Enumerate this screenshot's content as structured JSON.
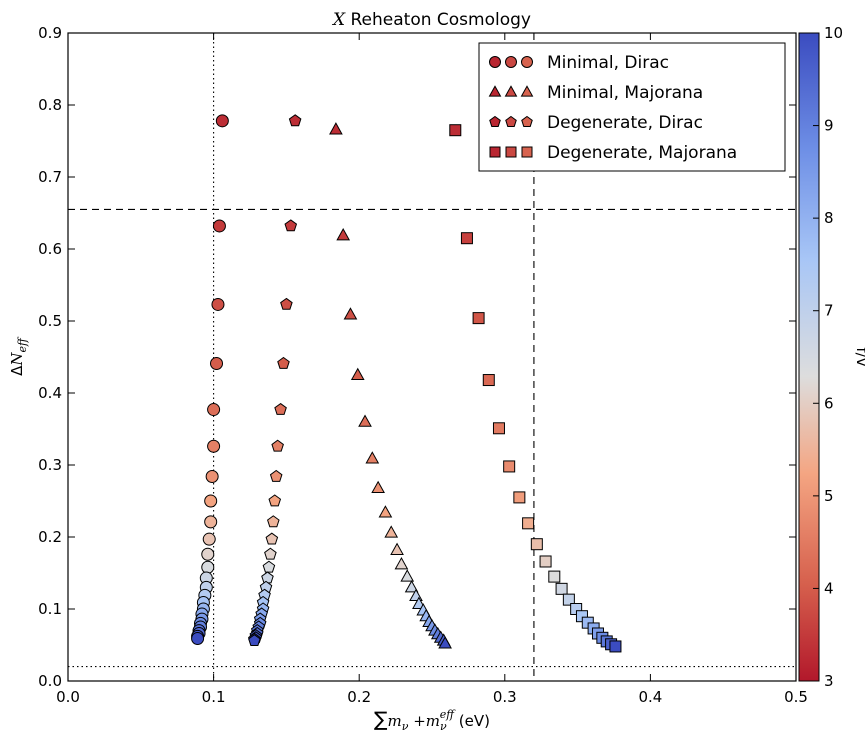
{
  "chart_data": {
    "type": "scatter",
    "title": {
      "prefix": "X",
      "rest": " Reheaton Cosmology"
    },
    "xlabel": {
      "sum": "∑",
      "m": "m",
      "nu": "ν",
      "plus": " +m",
      "nu2": "ν",
      "eff": "eff",
      "unit": " (eV)"
    },
    "ylabel": {
      "delta": "Δ",
      "n": "N",
      "eff": "eff"
    },
    "xlim": [
      0.0,
      0.5
    ],
    "ylim": [
      0.0,
      0.9
    ],
    "xticks": [
      "0.0",
      "0.1",
      "0.2",
      "0.3",
      "0.4",
      "0.5"
    ],
    "yticks": [
      "0.0",
      "0.1",
      "0.2",
      "0.3",
      "0.4",
      "0.5",
      "0.6",
      "0.7",
      "0.8",
      "0.9"
    ],
    "colorbar": {
      "label": "f/v",
      "min": 3,
      "max": 10,
      "ticks": [
        "3",
        "4",
        "5",
        "6",
        "7",
        "8",
        "9",
        "10"
      ]
    },
    "reference_lines": [
      {
        "orientation": "vertical",
        "value": 0.1,
        "style": "dotted"
      },
      {
        "orientation": "horizontal",
        "value": 0.02,
        "style": "dotted"
      },
      {
        "orientation": "vertical",
        "value": 0.32,
        "style": "dashed"
      },
      {
        "orientation": "horizontal",
        "value": 0.655,
        "style": "dashed"
      }
    ],
    "series": [
      {
        "name": "Minimal, Dirac",
        "marker": "circle",
        "x": [
          0.106,
          0.104,
          0.103,
          0.102,
          0.1,
          0.1,
          0.099,
          0.098,
          0.098,
          0.097,
          0.096,
          0.096,
          0.095,
          0.095,
          0.094,
          0.093,
          0.093,
          0.092,
          0.092,
          0.091,
          0.091,
          0.09,
          0.09,
          0.089,
          0.089
        ],
        "y": [
          0.778,
          0.632,
          0.523,
          0.441,
          0.377,
          0.326,
          0.284,
          0.25,
          0.221,
          0.197,
          0.176,
          0.158,
          0.143,
          0.13,
          0.119,
          0.109,
          0.1,
          0.093,
          0.086,
          0.08,
          0.075,
          0.07,
          0.066,
          0.062,
          0.059
        ],
        "c": [
          3.3,
          3.5,
          3.8,
          4.0,
          4.3,
          4.6,
          4.9,
          5.2,
          5.5,
          5.8,
          6.1,
          6.4,
          6.7,
          7.0,
          7.3,
          7.6,
          7.9,
          8.2,
          8.5,
          8.8,
          9.0,
          9.3,
          9.5,
          9.8,
          10.0
        ]
      },
      {
        "name": "Minimal, Majorana",
        "marker": "triangle",
        "x": [
          0.184,
          0.189,
          0.194,
          0.199,
          0.204,
          0.209,
          0.213,
          0.218,
          0.222,
          0.226,
          0.229,
          0.233,
          0.236,
          0.239,
          0.241,
          0.244,
          0.246,
          0.248,
          0.25,
          0.252,
          0.254,
          0.256,
          0.258,
          0.259
        ],
        "y": [
          0.766,
          0.619,
          0.509,
          0.425,
          0.36,
          0.309,
          0.268,
          0.234,
          0.206,
          0.182,
          0.162,
          0.145,
          0.13,
          0.118,
          0.107,
          0.098,
          0.09,
          0.082,
          0.076,
          0.07,
          0.065,
          0.06,
          0.056,
          0.052
        ],
        "c": [
          3.3,
          3.5,
          3.8,
          4.0,
          4.3,
          4.6,
          4.9,
          5.2,
          5.5,
          5.8,
          6.1,
          6.4,
          6.7,
          7.0,
          7.3,
          7.6,
          7.9,
          8.2,
          8.5,
          8.8,
          9.1,
          9.4,
          9.7,
          10.0
        ]
      },
      {
        "name": "Degenerate, Dirac",
        "marker": "pentagon",
        "x": [
          0.156,
          0.153,
          0.15,
          0.148,
          0.146,
          0.144,
          0.143,
          0.142,
          0.141,
          0.14,
          0.139,
          0.138,
          0.137,
          0.136,
          0.135,
          0.134,
          0.134,
          0.133,
          0.132,
          0.132,
          0.131,
          0.13,
          0.13,
          0.129,
          0.129,
          0.128,
          0.128
        ],
        "y": [
          0.778,
          0.632,
          0.523,
          0.441,
          0.377,
          0.326,
          0.284,
          0.25,
          0.221,
          0.197,
          0.176,
          0.158,
          0.143,
          0.13,
          0.119,
          0.109,
          0.1,
          0.093,
          0.086,
          0.08,
          0.075,
          0.07,
          0.066,
          0.063,
          0.06,
          0.058,
          0.056
        ],
        "c": [
          3.3,
          3.5,
          3.8,
          4.0,
          4.3,
          4.6,
          4.9,
          5.2,
          5.5,
          5.8,
          6.1,
          6.4,
          6.7,
          7.0,
          7.3,
          7.6,
          7.9,
          8.2,
          8.5,
          8.8,
          9.0,
          9.2,
          9.4,
          9.6,
          9.8,
          9.9,
          10.0
        ]
      },
      {
        "name": "Degenerate, Majorana",
        "marker": "square",
        "x": [
          0.266,
          0.274,
          0.282,
          0.289,
          0.296,
          0.303,
          0.31,
          0.316,
          0.322,
          0.328,
          0.334,
          0.339,
          0.344,
          0.349,
          0.353,
          0.357,
          0.361,
          0.364,
          0.367,
          0.37,
          0.373,
          0.376
        ],
        "y": [
          0.765,
          0.615,
          0.504,
          0.418,
          0.351,
          0.298,
          0.255,
          0.219,
          0.19,
          0.166,
          0.145,
          0.128,
          0.113,
          0.1,
          0.09,
          0.081,
          0.073,
          0.066,
          0.06,
          0.055,
          0.051,
          0.048
        ],
        "c": [
          3.3,
          3.6,
          3.9,
          4.2,
          4.5,
          4.8,
          5.1,
          5.4,
          5.7,
          6.0,
          6.3,
          6.6,
          6.9,
          7.2,
          7.5,
          7.8,
          8.1,
          8.4,
          8.8,
          9.2,
          9.6,
          10.0
        ]
      }
    ],
    "legend_location": "upper-right"
  }
}
